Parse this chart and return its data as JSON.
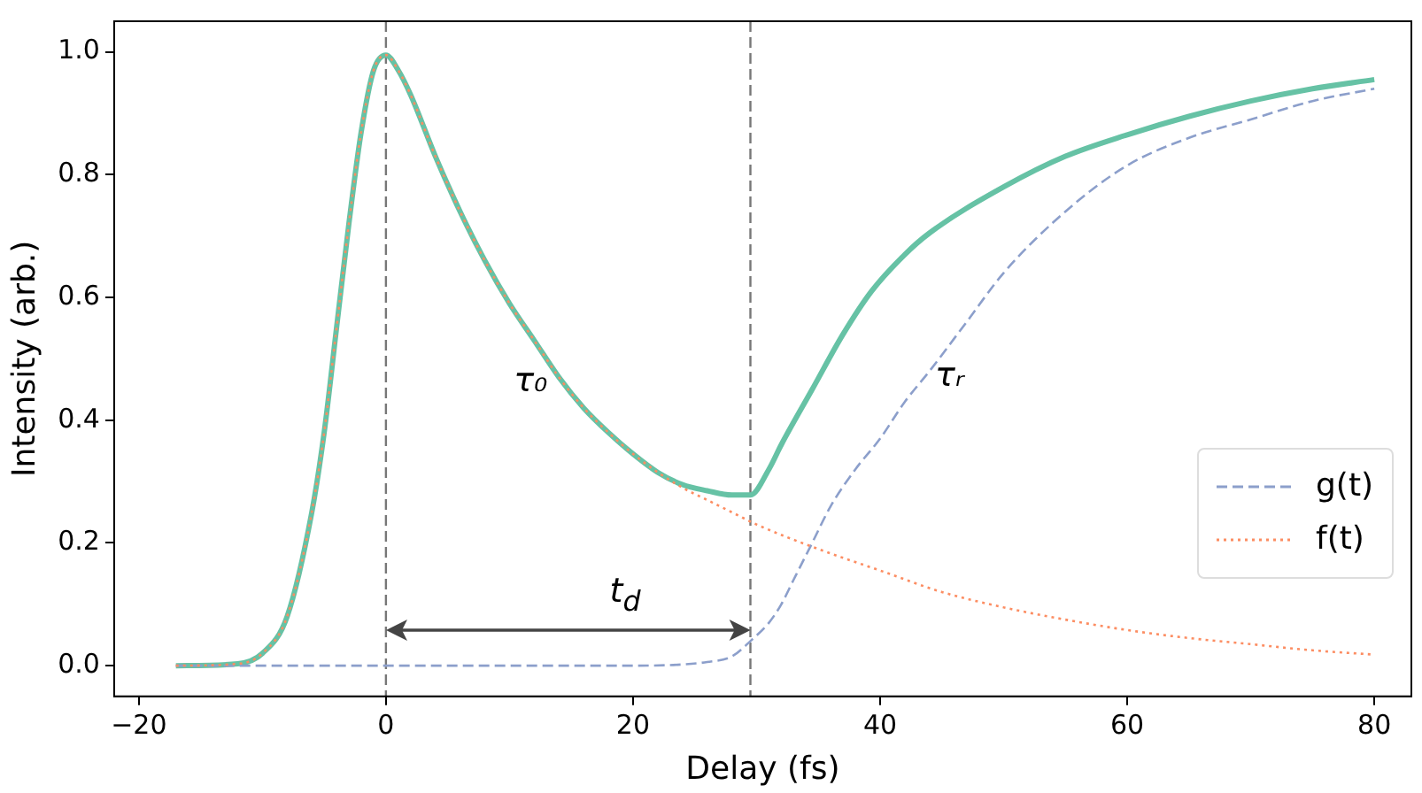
{
  "chart_data": {
    "type": "line",
    "xlabel": "Delay (fs)",
    "ylabel": "Intensity (arb.)",
    "xlim": [
      -22,
      83
    ],
    "ylim": [
      -0.05,
      1.05
    ],
    "xticks": [
      -20,
      0,
      20,
      40,
      60,
      80
    ],
    "yticks": [
      {
        "value": 0,
        "label": "0.0"
      },
      {
        "value": 0.2,
        "label": "0.2"
      },
      {
        "value": 0.4,
        "label": "0.4"
      },
      {
        "value": 0.6,
        "label": "0.6"
      },
      {
        "value": 0.8,
        "label": "0.8"
      },
      {
        "value": 1,
        "label": "1.0"
      }
    ],
    "grid": false,
    "legend": "right",
    "marker": "none",
    "series": [
      {
        "color": "#66c2a5",
        "line_style": "solid",
        "x": [
          -17,
          -12,
          -10,
          -8,
          -6,
          -5,
          -4,
          -3,
          -2,
          -1,
          0,
          1,
          2,
          4,
          6,
          8,
          10,
          12,
          14,
          16,
          18,
          20,
          22,
          24,
          26,
          28,
          29.5,
          31,
          32,
          34.5,
          37,
          39.3,
          42,
          44,
          50,
          55,
          60,
          65,
          70,
          75,
          80
        ],
        "values": [
          0,
          0.003,
          0.02,
          0.08,
          0.25,
          0.38,
          0.55,
          0.72,
          0.87,
          0.97,
          0.995,
          0.97,
          0.93,
          0.83,
          0.74,
          0.66,
          0.59,
          0.53,
          0.47,
          0.42,
          0.38,
          0.345,
          0.315,
          0.295,
          0.285,
          0.278,
          0.278,
          0.32,
          0.36,
          0.45,
          0.54,
          0.61,
          0.67,
          0.705,
          0.78,
          0.83,
          0.865,
          0.895,
          0.92,
          0.94,
          0.955
        ]
      },
      {
        "name": "g(t)",
        "color": "#8c9fcb",
        "line_style": "dashed",
        "x": [
          -17,
          0,
          10,
          20,
          24,
          26,
          28,
          29.5,
          31,
          32,
          33,
          34.5,
          36,
          38,
          40,
          42,
          44,
          47,
          50,
          55,
          60,
          65,
          70,
          75,
          80
        ],
        "values": [
          0,
          0,
          0,
          0,
          0.002,
          0.006,
          0.015,
          0.04,
          0.07,
          0.1,
          0.14,
          0.2,
          0.26,
          0.32,
          0.37,
          0.43,
          0.48,
          0.56,
          0.64,
          0.74,
          0.815,
          0.86,
          0.89,
          0.92,
          0.94
        ]
      },
      {
        "name": "f(t)",
        "color": "#fc8d62",
        "line_style": "dotted",
        "x": [
          -17,
          -12,
          -10,
          -8,
          -6,
          -5,
          -4,
          -3,
          -2,
          -1,
          0,
          1,
          2,
          4,
          6,
          8,
          10,
          12,
          14,
          16,
          18,
          20,
          22,
          24,
          26,
          28,
          30,
          35,
          40,
          45,
          50,
          55,
          60,
          65,
          70,
          75,
          80
        ],
        "values": [
          0,
          0.003,
          0.02,
          0.08,
          0.25,
          0.38,
          0.55,
          0.72,
          0.87,
          0.97,
          0.995,
          0.97,
          0.93,
          0.83,
          0.74,
          0.66,
          0.59,
          0.53,
          0.47,
          0.42,
          0.38,
          0.345,
          0.315,
          0.29,
          0.27,
          0.25,
          0.23,
          0.19,
          0.155,
          0.12,
          0.095,
          0.075,
          0.058,
          0.045,
          0.035,
          0.025,
          0.018
        ]
      }
    ],
    "ref_lines": [
      {
        "axis": "x",
        "value": 0,
        "color": "#777777",
        "line_style": "dashed"
      },
      {
        "axis": "x",
        "value": 29.5,
        "color": "#777777",
        "line_style": "dashed"
      }
    ],
    "annotations": [
      "τ₀",
      "τᵣ",
      "t$_{d}$"
    ]
  }
}
